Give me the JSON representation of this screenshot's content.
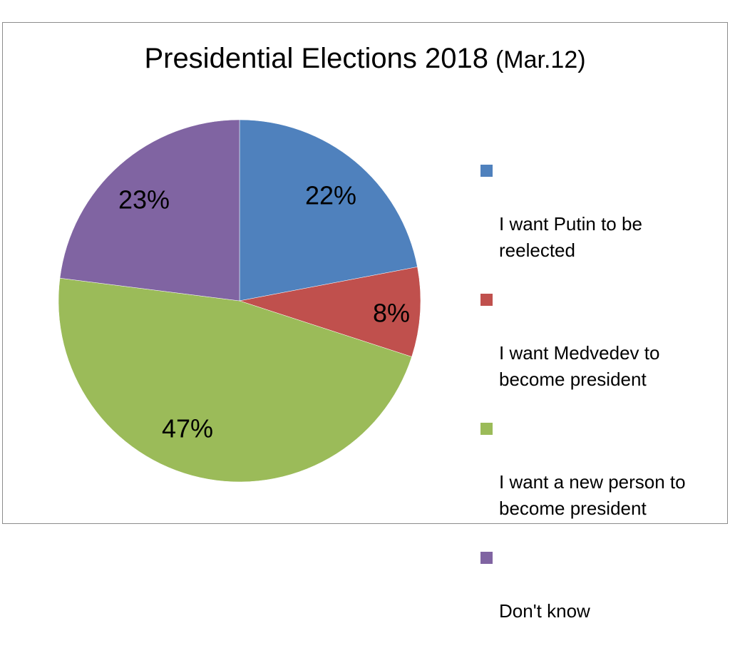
{
  "chart_data": {
    "type": "pie",
    "title": "Presidential Elections 2018",
    "subtitle": "(Mar.12)",
    "series": [
      {
        "values": [
          22,
          8,
          47,
          23
        ],
        "labels": [
          "22%",
          "8%",
          "47%",
          "23%"
        ]
      }
    ],
    "categories": [
      "I want Putin to be\nreelected",
      "I want Medvedev to\nbecome president",
      "I want a new person to\nbecome president",
      "Don't know"
    ],
    "colors": [
      "#4f81bd",
      "#c0504d",
      "#9bbb59",
      "#8064a2"
    ],
    "legend_position": "right",
    "start_angle_deg": 0,
    "direction": "clockwise"
  }
}
